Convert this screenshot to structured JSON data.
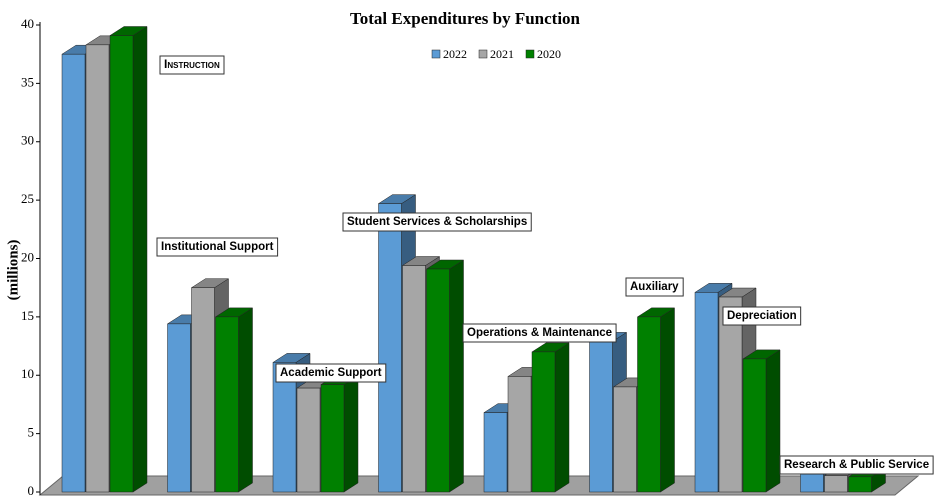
{
  "chart_data": {
    "type": "bar3d",
    "title": "Total Expenditures by Function",
    "y_label": "(millions)",
    "categories": [
      "Instruction",
      "Institutional Support",
      "Academic Support",
      "Student Services & Scholarships",
      "Operations & Maintenance",
      "Auxiliary",
      "Depreciation",
      "Research & Public Service"
    ],
    "series": [
      {
        "name": "2022",
        "color": "#5b9bd5",
        "values": [
          37.5,
          14.4,
          11.1,
          24.7,
          6.8,
          12.9,
          17.1,
          1.8
        ]
      },
      {
        "name": "2021",
        "color": "#a6a6a6",
        "values": [
          38.3,
          17.5,
          8.9,
          19.4,
          9.9,
          9.0,
          16.7,
          1.4
        ]
      },
      {
        "name": "2020",
        "color": "#008000",
        "values": [
          39.1,
          15.0,
          9.2,
          19.1,
          12.0,
          15.0,
          11.4,
          1.3
        ]
      }
    ],
    "ylim": [
      0,
      40
    ],
    "yticks": [
      0,
      5,
      10,
      15,
      20,
      25,
      30,
      35,
      40
    ],
    "grid": false,
    "legend": "top"
  }
}
